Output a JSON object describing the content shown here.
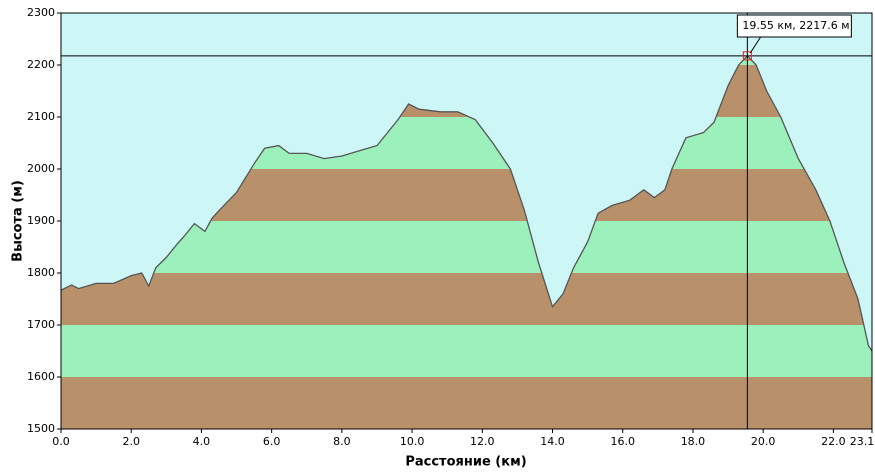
{
  "chart_data": {
    "type": "area",
    "x_label": "Расстояние  (км)",
    "y_label": "Высота (м)",
    "x": [
      0,
      0.3,
      0.5,
      1.0,
      1.5,
      2.0,
      2.3,
      2.5,
      2.7,
      3.0,
      3.3,
      3.5,
      3.8,
      4.1,
      4.3,
      4.5,
      5.0,
      5.5,
      5.8,
      6.2,
      6.5,
      7.0,
      7.5,
      8.0,
      8.5,
      9.0,
      9.3,
      9.6,
      9.9,
      10.2,
      10.8,
      11.3,
      11.8,
      12.3,
      12.8,
      13.2,
      13.6,
      14.0,
      14.3,
      14.6,
      15.0,
      15.3,
      15.7,
      16.2,
      16.6,
      16.9,
      17.2,
      17.4,
      17.8,
      18.3,
      18.6,
      19.0,
      19.3,
      19.55,
      19.8,
      20.1,
      20.5,
      21.0,
      21.5,
      21.9,
      22.3,
      22.7,
      23.0,
      23.1
    ],
    "values": [
      1767,
      1777,
      1770,
      1780,
      1780,
      1795,
      1800,
      1775,
      1810,
      1830,
      1855,
      1870,
      1895,
      1880,
      1905,
      1920,
      1955,
      2010,
      2040,
      2045,
      2030,
      2030,
      2020,
      2025,
      2035,
      2045,
      2070,
      2095,
      2125,
      2115,
      2110,
      2110,
      2095,
      2050,
      2000,
      1920,
      1820,
      1735,
      1760,
      1810,
      1860,
      1915,
      1930,
      1940,
      1960,
      1945,
      1960,
      2000,
      2060,
      2070,
      2090,
      2160,
      2200,
      2217.6,
      2200,
      2150,
      2100,
      2020,
      1960,
      1900,
      1820,
      1750,
      1660,
      1650
    ],
    "xlim": [
      0,
      23.1
    ],
    "ylim": [
      1500,
      2300
    ],
    "xticks": [
      {
        "value": 0,
        "label": "0.0"
      },
      {
        "value": 2,
        "label": "2.0"
      },
      {
        "value": 4,
        "label": "4.0"
      },
      {
        "value": 6,
        "label": "6.0"
      },
      {
        "value": 8,
        "label": "8.0"
      },
      {
        "value": 10,
        "label": "10.0"
      },
      {
        "value": 12,
        "label": "12.0"
      },
      {
        "value": 14,
        "label": "14.0"
      },
      {
        "value": 16,
        "label": "16.0"
      },
      {
        "value": 18,
        "label": "18.0"
      },
      {
        "value": 20,
        "label": "20.0"
      },
      {
        "value": 22,
        "label": "22.0"
      },
      23.1
    ],
    "yticks": [
      1500,
      1600,
      1700,
      1800,
      1900,
      2000,
      2100,
      2200,
      2300
    ],
    "band_colors": [
      "#b8916a",
      "#9cf0bc"
    ],
    "background": "#cdf6f6",
    "line_color": "#555555",
    "cursor": {
      "x": 19.55,
      "y": 2217.6,
      "label": "19.55 км, 2217.6 м"
    }
  }
}
